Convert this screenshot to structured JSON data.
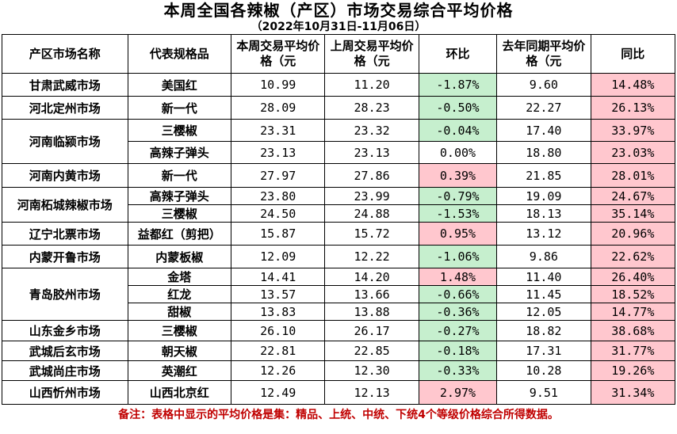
{
  "title": "本周全国各辣椒（产区）市场交易综合平均价格",
  "subtitle": "（2022年10月31日-11月06日）",
  "headers": {
    "market": "产区市场名称",
    "spec": "代表规格品",
    "this_week": "本周交易平均价格（元",
    "last_week": "上周交易平均价格（元",
    "wow": "环比",
    "last_year": "去年同期平均价格（元",
    "yoy": "同比"
  },
  "rows": [
    {
      "market": "甘肃武威市场",
      "spec": "美国红",
      "this_week": "10.99",
      "last_week": "11.20",
      "wow": "-1.87%",
      "last_year": "9.60",
      "yoy": "14.48%"
    },
    {
      "market": "河北定州市场",
      "spec": "新一代",
      "this_week": "28.09",
      "last_week": "28.23",
      "wow": "-0.50%",
      "last_year": "22.27",
      "yoy": "26.13%"
    },
    {
      "market": "河南临颍市场",
      "spec": "三樱椒",
      "this_week": "23.31",
      "last_week": "23.32",
      "wow": "-0.04%",
      "last_year": "17.40",
      "yoy": "33.97%"
    },
    {
      "market": "",
      "spec": "高辣子弹头",
      "this_week": "23.13",
      "last_week": "23.13",
      "wow": "0.00%",
      "last_year": "18.80",
      "yoy": "23.03%"
    },
    {
      "market": "河南内黄市场",
      "spec": "新一代",
      "this_week": "27.97",
      "last_week": "27.86",
      "wow": "0.39%",
      "last_year": "21.85",
      "yoy": "28.01%"
    },
    {
      "market": "河南柘城辣椒市场",
      "spec": "高辣子弹头",
      "this_week": "23.80",
      "last_week": "23.99",
      "wow": "-0.79%",
      "last_year": "19.09",
      "yoy": "24.67%"
    },
    {
      "market": "",
      "spec": "三樱椒",
      "this_week": "24.50",
      "last_week": "24.88",
      "wow": "-1.53%",
      "last_year": "18.13",
      "yoy": "35.14%"
    },
    {
      "market": "辽宁北票市场",
      "spec": "益都红（剪把）",
      "this_week": "15.87",
      "last_week": "15.72",
      "wow": "0.95%",
      "last_year": "13.12",
      "yoy": "20.96%"
    },
    {
      "market": "内蒙开鲁市场",
      "spec": "内蒙板椒",
      "this_week": "12.09",
      "last_week": "12.22",
      "wow": "-1.06%",
      "last_year": "9.86",
      "yoy": "22.62%"
    },
    {
      "market": "青岛胶州市场",
      "spec": "金塔",
      "this_week": "14.41",
      "last_week": "14.20",
      "wow": "1.48%",
      "last_year": "11.40",
      "yoy": "26.40%"
    },
    {
      "market": "",
      "spec": "红龙",
      "this_week": "13.57",
      "last_week": "13.66",
      "wow": "-0.66%",
      "last_year": "11.45",
      "yoy": "18.52%"
    },
    {
      "market": "",
      "spec": "甜椒",
      "this_week": "13.83",
      "last_week": "13.88",
      "wow": "-0.36%",
      "last_year": "12.05",
      "yoy": "14.77%"
    },
    {
      "market": "山东金乡市场",
      "spec": "三樱椒",
      "this_week": "26.10",
      "last_week": "26.17",
      "wow": "-0.27%",
      "last_year": "18.82",
      "yoy": "38.68%"
    },
    {
      "market": "武城后玄市场",
      "spec": "朝天椒",
      "this_week": "22.81",
      "last_week": "22.85",
      "wow": "-0.18%",
      "last_year": "17.31",
      "yoy": "31.77%"
    },
    {
      "market": "武城尚庄市场",
      "spec": "英潮红",
      "this_week": "12.26",
      "last_week": "12.30",
      "wow": "-0.33%",
      "last_year": "10.28",
      "yoy": "19.26%"
    },
    {
      "market": "山西忻州市场",
      "spec": "山西北京红",
      "this_week": "12.49",
      "last_week": "12.13",
      "wow": "2.97%",
      "last_year": "9.51",
      "yoy": "31.34%"
    }
  ],
  "colors": {
    "decrease_fill": "#c6efce",
    "increase_fill": "#ffc7ce",
    "note_text": "#c00000"
  },
  "note": "备注：表格中显示的平均价格是集：精品、上统、中统、下统4个等级价格综合所得数据。"
}
